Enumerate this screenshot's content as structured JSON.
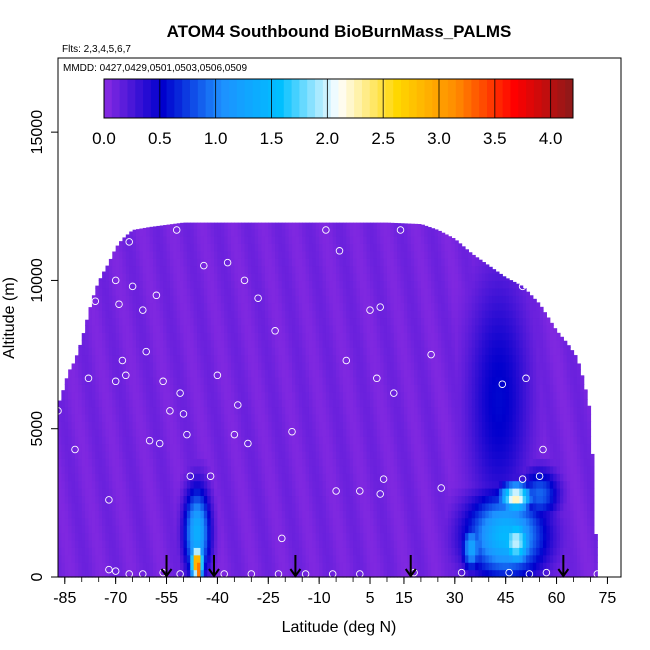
{
  "chart_data": {
    "type": "heatmap",
    "title": "ATOM4 Southbound BioBurnMass_PALMS",
    "flights_note": "Flts: 2,3,4,5,6,7",
    "dates_note": "MMDD: 0427,0429,0501,0503,0506,0509",
    "xlabel": "Latitude (deg N)",
    "ylabel": "Altitude (m)",
    "xlim": [
      -87,
      79
    ],
    "ylim": [
      0,
      17500
    ],
    "x_ticks": [
      -85,
      -70,
      -55,
      -40,
      -25,
      -10,
      5,
      15,
      30,
      45,
      60,
      75
    ],
    "x_tick_labels": [
      "-85",
      "-70",
      "-55",
      "-40",
      "-25",
      "-10",
      "5",
      "15",
      "30",
      "45",
      "60",
      "75"
    ],
    "x_minor_step": 5,
    "y_ticks": [
      0,
      5000,
      10000,
      15000
    ],
    "y_tick_labels": [
      "0",
      "5000",
      "10000",
      "15000"
    ],
    "colorbar": {
      "range": [
        0.0,
        4.2
      ],
      "ticks": [
        0.0,
        0.5,
        1.0,
        1.5,
        2.0,
        2.5,
        3.0,
        3.5,
        4.0
      ],
      "tick_labels": [
        "0.0",
        "0.5",
        "1.0",
        "1.5",
        "2.0",
        "2.5",
        "3.0",
        "3.5",
        "4.0"
      ],
      "colors": [
        "#8a2be2",
        "#0000cd",
        "#1e90ff",
        "#00bfff",
        "#ffffff",
        "#ffd700",
        "#ff8c00",
        "#ff0000",
        "#8b1a1a"
      ]
    },
    "envelope": [
      [
        -87,
        0,
        5800
      ],
      [
        -86,
        0,
        6100
      ],
      [
        -84,
        0,
        6900
      ],
      [
        -82,
        0,
        7300
      ],
      [
        -80,
        0,
        8000
      ],
      [
        -78,
        0,
        8900
      ],
      [
        -76,
        0,
        9700
      ],
      [
        -74,
        0,
        10200
      ],
      [
        -72,
        0,
        10600
      ],
      [
        -70,
        0,
        11100
      ],
      [
        -68,
        0,
        11400
      ],
      [
        -65,
        0,
        11700
      ],
      [
        -60,
        0,
        11800
      ],
      [
        -50,
        0,
        11950
      ],
      [
        -30,
        0,
        11950
      ],
      [
        -10,
        0,
        11950
      ],
      [
        10,
        0,
        11950
      ],
      [
        20,
        0,
        11900
      ],
      [
        25,
        0,
        11700
      ],
      [
        30,
        0,
        11400
      ],
      [
        35,
        0,
        10900
      ],
      [
        40,
        0,
        10500
      ],
      [
        45,
        0,
        10100
      ],
      [
        50,
        0,
        9800
      ],
      [
        55,
        0,
        9200
      ],
      [
        60,
        0,
        8300
      ],
      [
        63,
        0,
        7900
      ],
      [
        66,
        0,
        7400
      ],
      [
        68,
        0,
        6600
      ],
      [
        70,
        0,
        5500
      ],
      [
        72,
        0,
        100
      ]
    ],
    "plumes": [
      {
        "lat": -46,
        "alt": 1500,
        "lat_halfwidth": 4,
        "alt_halfheight": 1600,
        "value": 1.4
      },
      {
        "lat": -46,
        "alt": 500,
        "lat_halfwidth": 2,
        "alt_halfheight": 600,
        "value": 3.2
      },
      {
        "lat": -45.5,
        "alt": 250,
        "lat_halfwidth": 1,
        "alt_halfheight": 300,
        "value": 3.9
      },
      {
        "lat": 45,
        "alt": 1400,
        "lat_halfwidth": 12,
        "alt_halfheight": 1500,
        "value": 1.5
      },
      {
        "lat": 48,
        "alt": 2700,
        "lat_halfwidth": 5,
        "alt_halfheight": 500,
        "value": 2.3
      },
      {
        "lat": 48,
        "alt": 1200,
        "lat_halfwidth": 5,
        "alt_halfheight": 900,
        "value": 2.0
      },
      {
        "lat": 35,
        "alt": 1000,
        "lat_halfwidth": 3,
        "alt_halfheight": 800,
        "value": 1.3
      },
      {
        "lat": 43,
        "alt": 6000,
        "lat_halfwidth": 10,
        "alt_halfheight": 4500,
        "value": 0.55
      },
      {
        "lat": 55,
        "alt": 2800,
        "lat_halfwidth": 6,
        "alt_halfheight": 900,
        "value": 0.9
      }
    ],
    "samples": [
      [
        -87,
        5600
      ],
      [
        -82,
        4300
      ],
      [
        -78,
        6700
      ],
      [
        -76,
        9300
      ],
      [
        -72,
        2600
      ],
      [
        -70,
        10000
      ],
      [
        -70,
        6600
      ],
      [
        -69,
        9200
      ],
      [
        -68,
        7300
      ],
      [
        -67,
        6800
      ],
      [
        -66,
        11300
      ],
      [
        -65,
        9800
      ],
      [
        -61,
        7600
      ],
      [
        -62,
        9000
      ],
      [
        -60,
        4600
      ],
      [
        -58,
        9500
      ],
      [
        -57,
        4500
      ],
      [
        -56,
        6600
      ],
      [
        -54,
        5600
      ],
      [
        -52,
        11700
      ],
      [
        -51,
        6200
      ],
      [
        -50,
        5500
      ],
      [
        -49,
        4800
      ],
      [
        -48,
        3400
      ],
      [
        -44,
        10500
      ],
      [
        -42,
        3400
      ],
      [
        -40,
        6800
      ],
      [
        -37,
        10600
      ],
      [
        -35,
        4800
      ],
      [
        -34,
        5800
      ],
      [
        -32,
        10000
      ],
      [
        -31,
        4500
      ],
      [
        -28,
        9400
      ],
      [
        -23,
        8300
      ],
      [
        -21,
        1300
      ],
      [
        -18,
        4900
      ],
      [
        -8,
        11700
      ],
      [
        -4,
        11000
      ],
      [
        -2,
        7300
      ],
      [
        -5,
        2900
      ],
      [
        2,
        2900
      ],
      [
        5,
        9000
      ],
      [
        7,
        6700
      ],
      [
        8,
        2800
      ],
      [
        8,
        9100
      ],
      [
        9,
        3300
      ],
      [
        12,
        6200
      ],
      [
        14,
        11700
      ],
      [
        23,
        7500
      ],
      [
        26,
        3000
      ],
      [
        44,
        6500
      ],
      [
        50,
        9800
      ],
      [
        51,
        6700
      ],
      [
        55,
        9600
      ],
      [
        55,
        3400
      ],
      [
        50,
        3300
      ],
      [
        56,
        4300
      ],
      [
        72,
        7200
      ],
      [
        -72,
        250
      ],
      [
        -70,
        200
      ],
      [
        -66,
        100
      ],
      [
        -62,
        100
      ],
      [
        -56,
        150
      ],
      [
        -51,
        100
      ],
      [
        -38,
        100
      ],
      [
        -30,
        100
      ],
      [
        -22,
        100
      ],
      [
        -14,
        100
      ],
      [
        -6,
        100
      ],
      [
        2,
        100
      ],
      [
        18,
        150
      ],
      [
        32,
        150
      ],
      [
        46,
        150
      ],
      [
        52,
        100
      ],
      [
        57,
        150
      ],
      [
        72,
        100
      ]
    ],
    "flight_arrows": [
      -55,
      -41,
      -17,
      17,
      62
    ]
  }
}
